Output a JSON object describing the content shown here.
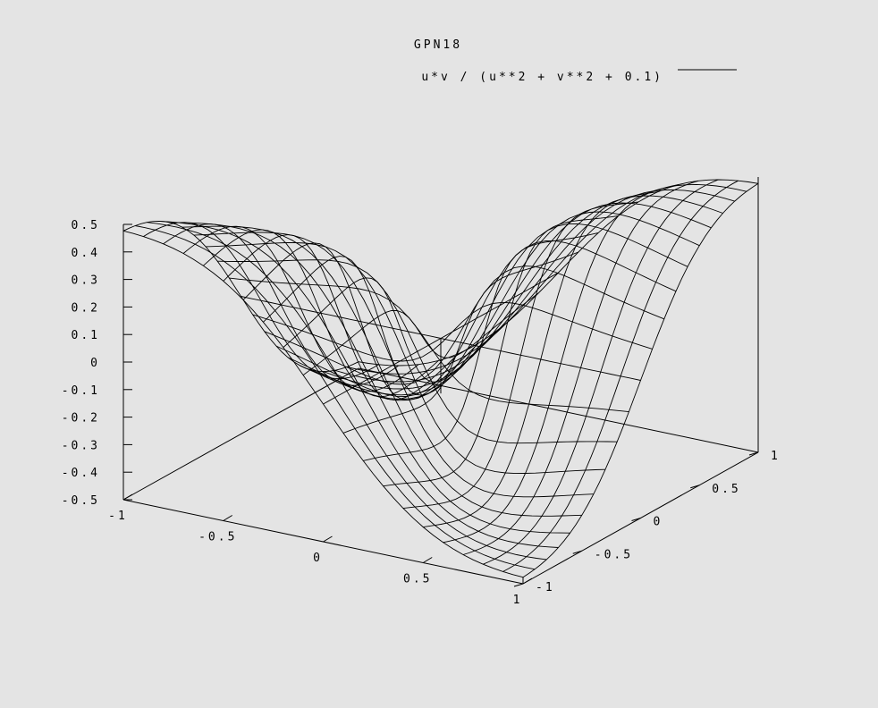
{
  "chart_data": {
    "type": "surface",
    "title": "GPN18",
    "series": [
      {
        "name": "u*v / (u**2 + v**2 + 0.1)",
        "function": "u*v / (u**2 + v**2 + 0.1)"
      }
    ],
    "x_range": [
      -1,
      1
    ],
    "y_range": [
      -1,
      1
    ],
    "zlim": [
      -0.5,
      0.5
    ],
    "grid_samples": 20,
    "x_ticks": [
      "-1",
      "-0.5",
      "0",
      "0.5",
      "1"
    ],
    "y_ticks": [
      "-1",
      "-0.5",
      "0",
      "0.5",
      "1"
    ],
    "z_ticks": [
      "0.5",
      "0.4",
      "0.3",
      "0.2",
      "0.1",
      "0",
      "-0.1",
      "-0.2",
      "-0.3",
      "-0.4",
      "-0.5"
    ],
    "legend_position": "top-right",
    "grid": false,
    "render": "wireframe",
    "colors": {
      "background": "#e4e4e4",
      "line": "#000000"
    }
  }
}
